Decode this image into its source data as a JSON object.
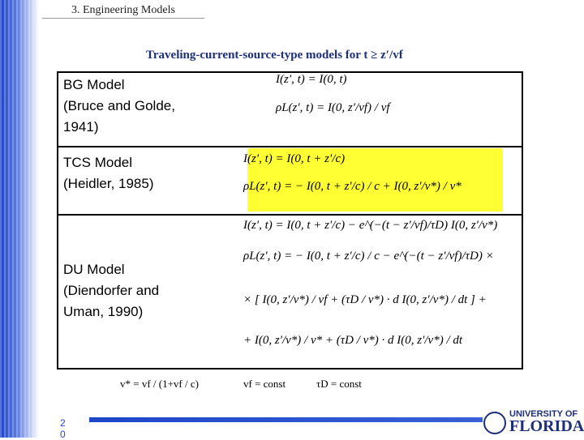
{
  "header": {
    "section": "3. Engineering Models",
    "title": "Traveling-current-source-type models for t ≥ z′/vf"
  },
  "table": {
    "rows": [
      {
        "model": [
          "BG Model",
          "(Bruce and Golde,",
          "1941)"
        ],
        "equations": [
          "I(z′, t) = I(0, t)",
          "ρL(z′, t) = I(0, z′/vf) / vf"
        ]
      },
      {
        "model": [
          "TCS Model",
          "(Heidler, 1985)"
        ],
        "equations": [
          "I(z′, t) = I(0, t + z′/c)",
          "ρL(z′, t) = − I(0, t + z′/c) / c + I(0, z′/v*) / v*"
        ]
      },
      {
        "model": [
          "DU Model",
          "(Diendorfer and",
          "Uman, 1990)"
        ],
        "equations": [
          "I(z′, t) = I(0, t + z′/c) − e^(−(t − z′/vf)/τD) I(0, z′/v*)",
          "ρL(z′, t) = − I(0, t + z′/c) / c − e^(−(t − z′/vf)/τD) ×",
          "× [ I(0, z′/v*) / vf + (τD / v*) · d I(0, z′/v*) / dt ] +",
          "+ I(0, z′/v*) / v* + (τD / v*) · d I(0, z′/v*) / dt"
        ]
      }
    ]
  },
  "footnotes": [
    "v* = vf / (1+vf / c)",
    "vf = const",
    "τD = const"
  ],
  "page_number": [
    "2",
    "0"
  ],
  "logo": [
    "UNIVERSITY OF",
    "FLORIDA"
  ]
}
